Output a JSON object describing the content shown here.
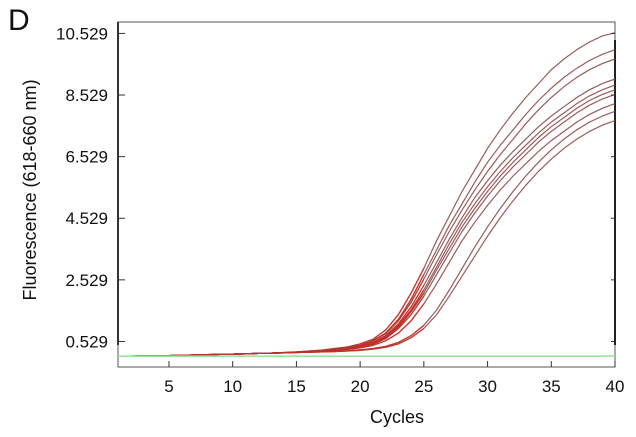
{
  "panel_label": "D",
  "chart_data": {
    "type": "line",
    "title": "",
    "xlabel": "Cycles",
    "ylabel": "Fluorescence (618-660 nm)",
    "xlim": [
      1,
      40
    ],
    "ylim": [
      -0.3,
      10.9
    ],
    "xticks": [
      5,
      10,
      15,
      20,
      25,
      30,
      35,
      40
    ],
    "yticks": [
      0.529,
      2.529,
      4.529,
      6.529,
      8.529,
      10.529
    ],
    "ytick_labels": [
      "0.529",
      "2.529",
      "4.529",
      "6.529",
      "8.529",
      "10.529"
    ],
    "grid": false,
    "legend": "none",
    "colors": {
      "amplification": "#8c4a4a",
      "early_phase": "#cc2a1f",
      "baseline": "#9ee39e",
      "axis": "#555555"
    },
    "x": [
      1,
      2,
      3,
      4,
      5,
      6,
      7,
      8,
      9,
      10,
      11,
      12,
      13,
      14,
      15,
      16,
      17,
      18,
      19,
      20,
      21,
      22,
      23,
      24,
      25,
      26,
      27,
      28,
      29,
      30,
      31,
      32,
      33,
      34,
      35,
      36,
      37,
      38,
      39,
      40
    ],
    "series": [
      {
        "values": [
          0.05,
          0.05,
          0.06,
          0.06,
          0.07,
          0.08,
          0.09,
          0.1,
          0.11,
          0.12,
          0.13,
          0.14,
          0.15,
          0.17,
          0.19,
          0.22,
          0.25,
          0.3,
          0.35,
          0.45,
          0.6,
          0.9,
          1.4,
          2.1,
          2.9,
          3.8,
          4.6,
          5.4,
          6.1,
          6.8,
          7.4,
          7.95,
          8.45,
          8.9,
          9.35,
          9.7,
          10.0,
          10.25,
          10.45,
          10.55
        ]
      },
      {
        "values": [
          0.05,
          0.05,
          0.06,
          0.06,
          0.07,
          0.08,
          0.09,
          0.1,
          0.11,
          0.12,
          0.13,
          0.14,
          0.15,
          0.16,
          0.18,
          0.2,
          0.23,
          0.27,
          0.32,
          0.4,
          0.55,
          0.8,
          1.25,
          1.9,
          2.7,
          3.5,
          4.3,
          5.0,
          5.7,
          6.35,
          6.9,
          7.4,
          7.9,
          8.35,
          8.75,
          9.1,
          9.4,
          9.65,
          9.85,
          10.0
        ]
      },
      {
        "values": [
          0.05,
          0.05,
          0.06,
          0.06,
          0.07,
          0.08,
          0.09,
          0.1,
          0.11,
          0.12,
          0.13,
          0.14,
          0.15,
          0.16,
          0.18,
          0.2,
          0.23,
          0.27,
          0.32,
          0.4,
          0.55,
          0.78,
          1.2,
          1.8,
          2.55,
          3.35,
          4.1,
          4.8,
          5.45,
          6.05,
          6.6,
          7.1,
          7.6,
          8.05,
          8.45,
          8.8,
          9.1,
          9.35,
          9.55,
          9.7
        ]
      },
      {
        "values": [
          0.05,
          0.05,
          0.06,
          0.06,
          0.07,
          0.08,
          0.09,
          0.1,
          0.11,
          0.12,
          0.13,
          0.14,
          0.15,
          0.16,
          0.18,
          0.2,
          0.22,
          0.26,
          0.3,
          0.37,
          0.5,
          0.72,
          1.1,
          1.65,
          2.35,
          3.1,
          3.85,
          4.55,
          5.2,
          5.75,
          6.25,
          6.7,
          7.1,
          7.5,
          7.85,
          8.15,
          8.45,
          8.7,
          8.9,
          9.05
        ]
      },
      {
        "values": [
          0.05,
          0.05,
          0.06,
          0.06,
          0.07,
          0.08,
          0.09,
          0.1,
          0.11,
          0.12,
          0.13,
          0.14,
          0.15,
          0.16,
          0.18,
          0.2,
          0.22,
          0.26,
          0.3,
          0.36,
          0.48,
          0.68,
          1.05,
          1.55,
          2.2,
          2.95,
          3.7,
          4.4,
          5.0,
          5.55,
          6.05,
          6.5,
          6.9,
          7.3,
          7.65,
          7.95,
          8.25,
          8.5,
          8.7,
          8.85
        ]
      },
      {
        "values": [
          0.05,
          0.05,
          0.06,
          0.06,
          0.07,
          0.08,
          0.09,
          0.1,
          0.11,
          0.12,
          0.13,
          0.14,
          0.15,
          0.16,
          0.18,
          0.2,
          0.22,
          0.25,
          0.29,
          0.35,
          0.46,
          0.65,
          1.0,
          1.5,
          2.1,
          2.85,
          3.55,
          4.25,
          4.85,
          5.4,
          5.9,
          6.35,
          6.75,
          7.15,
          7.5,
          7.8,
          8.1,
          8.35,
          8.55,
          8.7
        ]
      },
      {
        "values": [
          0.05,
          0.05,
          0.06,
          0.06,
          0.07,
          0.08,
          0.09,
          0.1,
          0.11,
          0.12,
          0.13,
          0.14,
          0.15,
          0.16,
          0.18,
          0.2,
          0.22,
          0.25,
          0.28,
          0.34,
          0.44,
          0.62,
          0.95,
          1.4,
          2.0,
          2.7,
          3.4,
          4.1,
          4.7,
          5.25,
          5.75,
          6.2,
          6.6,
          7.0,
          7.35,
          7.65,
          7.95,
          8.2,
          8.4,
          8.55
        ]
      },
      {
        "values": [
          0.05,
          0.05,
          0.06,
          0.06,
          0.07,
          0.08,
          0.09,
          0.1,
          0.11,
          0.12,
          0.13,
          0.14,
          0.15,
          0.16,
          0.18,
          0.2,
          0.21,
          0.24,
          0.27,
          0.32,
          0.4,
          0.55,
          0.8,
          1.2,
          1.75,
          2.4,
          3.1,
          3.8,
          4.4,
          4.95,
          5.45,
          5.9,
          6.3,
          6.7,
          7.05,
          7.35,
          7.65,
          7.9,
          8.1,
          8.25
        ]
      },
      {
        "values": [
          0.05,
          0.05,
          0.06,
          0.06,
          0.07,
          0.08,
          0.09,
          0.1,
          0.11,
          0.12,
          0.13,
          0.14,
          0.15,
          0.16,
          0.17,
          0.18,
          0.19,
          0.21,
          0.23,
          0.26,
          0.3,
          0.37,
          0.5,
          0.72,
          1.05,
          1.55,
          2.2,
          2.9,
          3.6,
          4.25,
          4.85,
          5.4,
          5.9,
          6.35,
          6.75,
          7.1,
          7.4,
          7.65,
          7.85,
          8.0
        ]
      },
      {
        "values": [
          0.05,
          0.05,
          0.06,
          0.06,
          0.07,
          0.08,
          0.09,
          0.1,
          0.11,
          0.12,
          0.13,
          0.14,
          0.15,
          0.16,
          0.17,
          0.18,
          0.19,
          0.2,
          0.22,
          0.24,
          0.28,
          0.34,
          0.45,
          0.65,
          0.95,
          1.4,
          2.0,
          2.65,
          3.3,
          3.95,
          4.55,
          5.1,
          5.6,
          6.05,
          6.45,
          6.8,
          7.1,
          7.35,
          7.55,
          7.7
        ]
      },
      {
        "kind": "baseline",
        "values": [
          0.05,
          0.05,
          0.05,
          0.05,
          0.05,
          0.05,
          0.05,
          0.05,
          0.05,
          0.05,
          0.05,
          0.05,
          0.05,
          0.05,
          0.05,
          0.05,
          0.05,
          0.05,
          0.05,
          0.05,
          0.05,
          0.05,
          0.05,
          0.05,
          0.05,
          0.05,
          0.05,
          0.05,
          0.05,
          0.05,
          0.05,
          0.05,
          0.05,
          0.05,
          0.05,
          0.05,
          0.05,
          0.05,
          0.05,
          0.06
        ]
      }
    ]
  }
}
